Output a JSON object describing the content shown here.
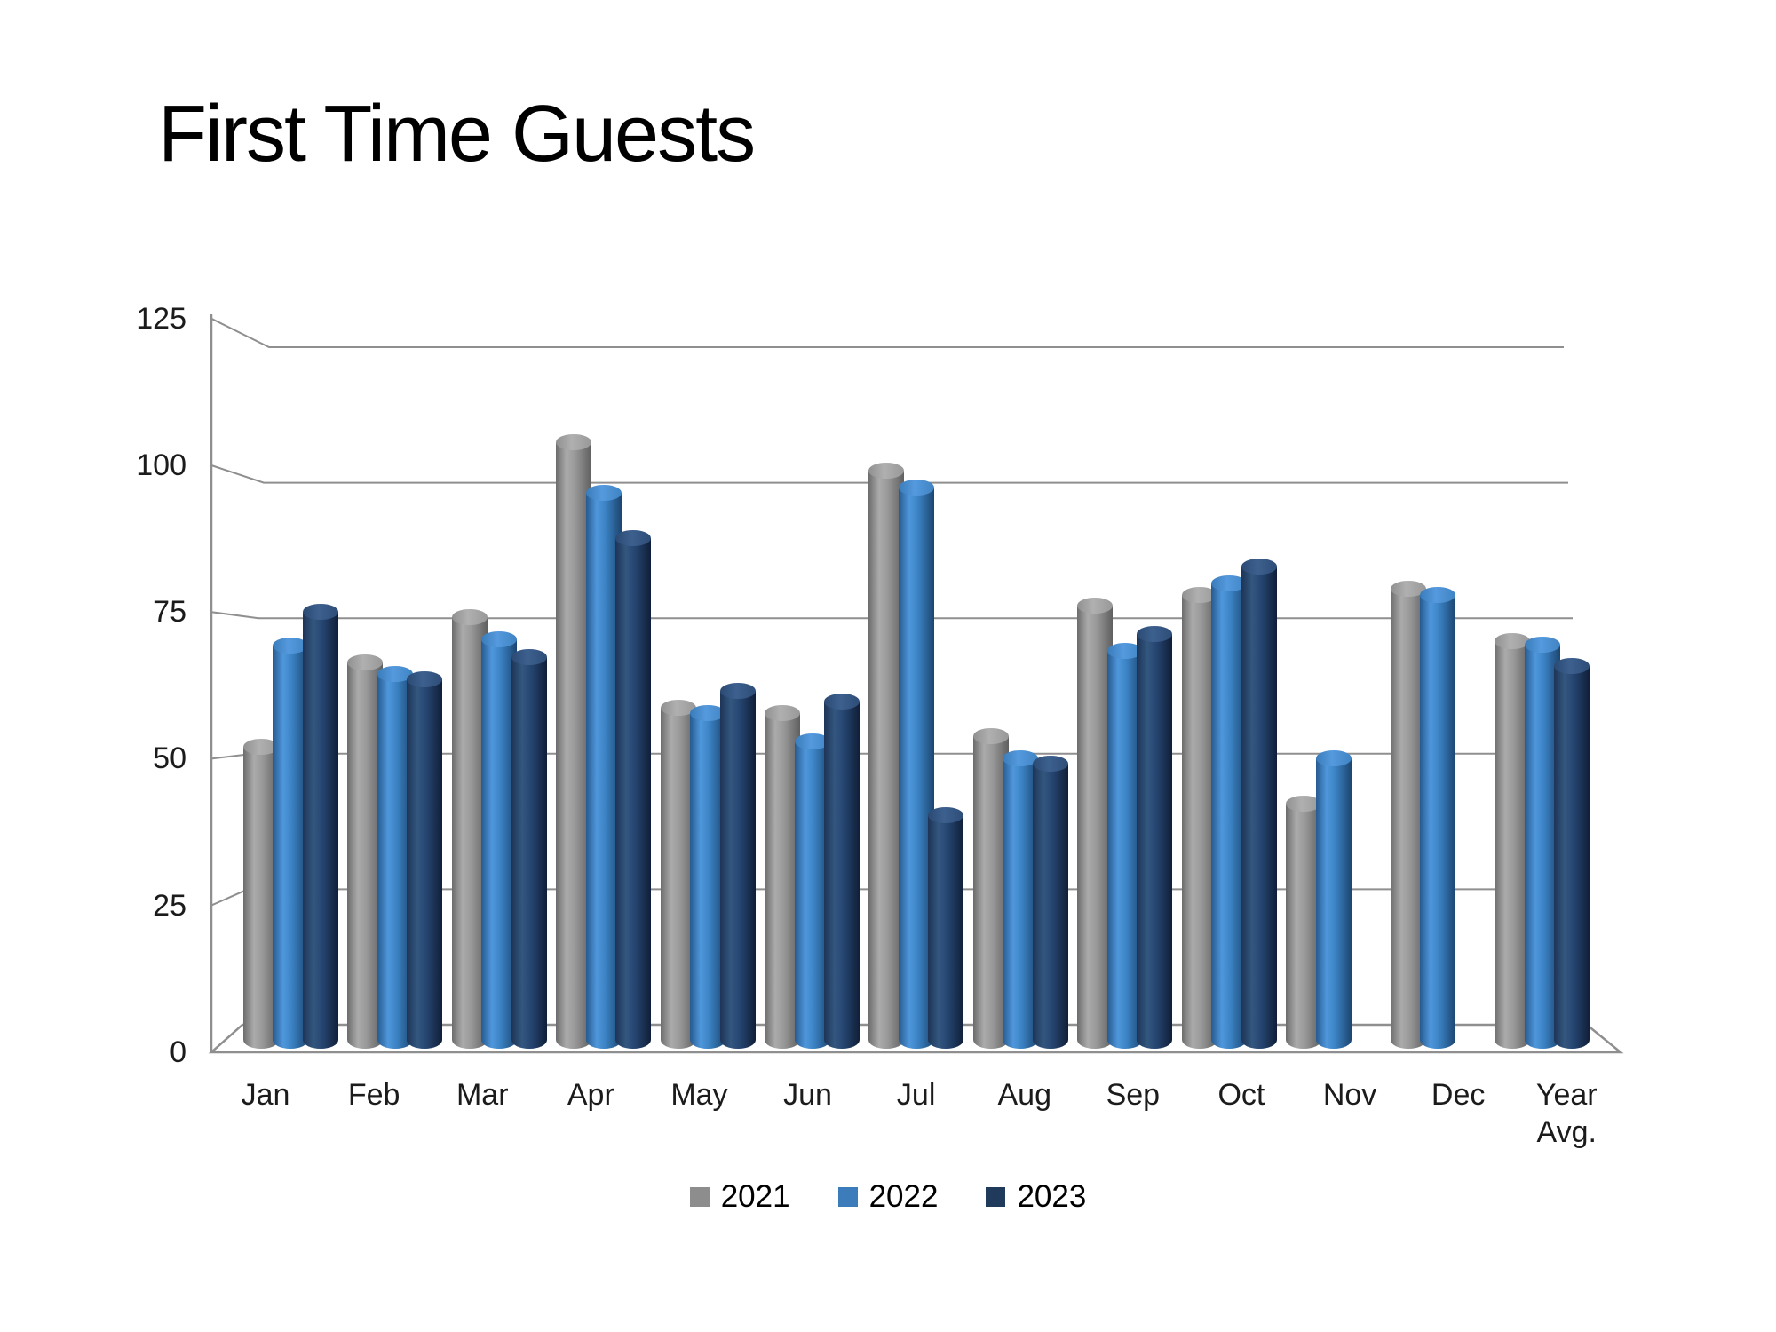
{
  "chart_data": {
    "type": "bar",
    "style": "3d-cylinder",
    "title": "First Time Guests",
    "categories": [
      "Jan",
      "Feb",
      "Mar",
      "Apr",
      "May",
      "Jun",
      "Jul",
      "Aug",
      "Sep",
      "Oct",
      "Nov",
      "Dec",
      "Year Avg."
    ],
    "series": [
      {
        "name": "2021",
        "values": [
          52,
          67,
          75,
          106,
          59,
          58,
          101,
          54,
          77,
          79,
          42,
          80,
          70.8
        ]
      },
      {
        "name": "2022",
        "values": [
          70,
          65,
          71,
          97,
          58,
          53,
          98,
          50,
          69,
          81,
          50,
          79,
          70.1
        ]
      },
      {
        "name": "2023",
        "values": [
          76,
          64,
          68,
          89,
          62,
          60,
          40,
          49,
          72,
          84,
          null,
          null,
          66.4
        ]
      }
    ],
    "xlabel": "",
    "ylabel": "",
    "ylim": [
      0,
      125
    ],
    "yticks": [
      0,
      25,
      50,
      75,
      100,
      125
    ],
    "grid": true,
    "legend_position": "bottom-center",
    "legend": [
      {
        "label": "2021",
        "color": "#8d8d8d"
      },
      {
        "label": "2022",
        "color": "#3c7cba"
      },
      {
        "label": "2023",
        "color": "#203a5c"
      }
    ]
  },
  "colors": {
    "background": "#ffffff",
    "text": "#1b1b1b",
    "grid_line": "#8f8f8f",
    "series_2021": {
      "body": [
        "#6c6c6c",
        "#ababab",
        "#999999",
        "#5f5f5f"
      ],
      "cap": [
        "#909090",
        "#b0b0b0",
        "#989898"
      ]
    },
    "series_2022": {
      "body": [
        "#265a8f",
        "#4f97dc",
        "#3b83c4",
        "#1c4570"
      ],
      "cap": [
        "#3a7cba",
        "#559ade",
        "#3f83c2"
      ]
    },
    "series_2023": {
      "body": [
        "#1d3456",
        "#33577f",
        "#264672",
        "#101f38"
      ],
      "cap": [
        "#2b4a74",
        "#3d608e",
        "#2e4d78"
      ]
    }
  }
}
